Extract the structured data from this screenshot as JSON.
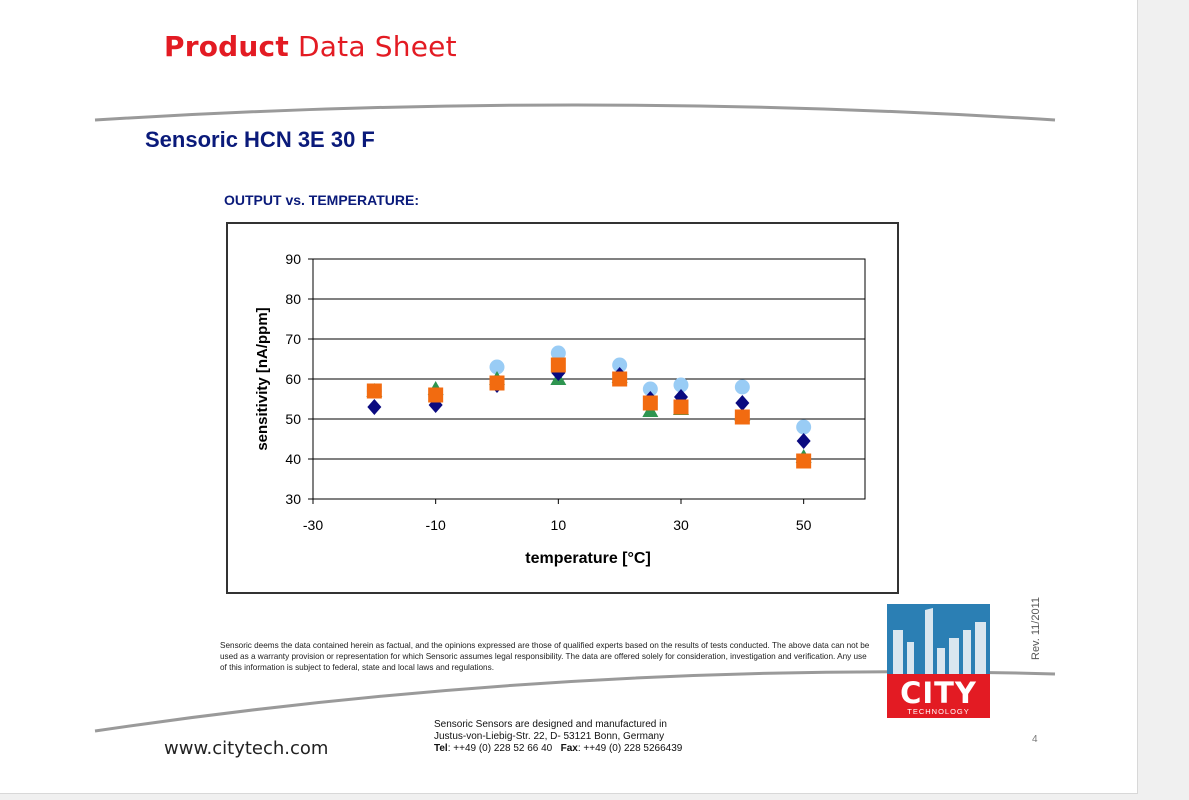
{
  "header": {
    "title_bold": "Product",
    "title_light": "Data Sheet"
  },
  "product_name": "Sensoric HCN 3E 30 F",
  "chart_heading": "OUTPUT vs. TEMPERATURE:",
  "chart_data": {
    "type": "scatter",
    "xlabel": "temperature [°C]",
    "ylabel": "sensitivity [nA/ppm]",
    "xlim": [
      -30,
      60
    ],
    "ylim": [
      30,
      90
    ],
    "x_ticks": [
      -30,
      -10,
      10,
      30,
      50
    ],
    "y_ticks": [
      30,
      40,
      50,
      60,
      70,
      80,
      90
    ],
    "grid": "horizontal",
    "series": [
      {
        "marker": "circle",
        "color": "#99ccf5",
        "points": [
          [
            -20,
            57
          ],
          [
            -10,
            56
          ],
          [
            0,
            63
          ],
          [
            10,
            66.5
          ],
          [
            20,
            63.5
          ],
          [
            25,
            57.5
          ],
          [
            30,
            58.5
          ],
          [
            40,
            58
          ],
          [
            50,
            48
          ]
        ]
      },
      {
        "marker": "triangle",
        "color": "#2e9550",
        "points": [
          [
            -20,
            57
          ],
          [
            -10,
            57.5
          ],
          [
            0,
            60
          ],
          [
            10,
            60
          ],
          [
            20,
            60.5
          ],
          [
            25,
            52
          ],
          [
            30,
            52.5
          ],
          [
            40,
            51
          ],
          [
            50,
            40.5
          ]
        ]
      },
      {
        "marker": "diamond",
        "color": "#0a0a80",
        "points": [
          [
            -20,
            53
          ],
          [
            -10,
            53.5
          ],
          [
            0,
            58.5
          ],
          [
            10,
            61.5
          ],
          [
            20,
            61
          ],
          [
            25,
            55
          ],
          [
            30,
            55.5
          ],
          [
            40,
            54
          ],
          [
            50,
            44.5
          ]
        ]
      },
      {
        "marker": "square",
        "color": "#f26b10",
        "points": [
          [
            -20,
            57
          ],
          [
            -10,
            56
          ],
          [
            0,
            59
          ],
          [
            10,
            63.5
          ],
          [
            20,
            60
          ],
          [
            25,
            54
          ],
          [
            30,
            53
          ],
          [
            40,
            50.5
          ],
          [
            50,
            39.5
          ]
        ]
      }
    ]
  },
  "disclaimer": "Sensoric deems the data contained herein as factual, and the opinions expressed are those of qualified experts based on the results of tests conducted. The above data can not be used as a warranty provision or representation for which Sensoric assumes legal responsibility. The data are offered solely for consideration, investigation and verification. Any use of this information is subject to federal, state and local laws and regulations.",
  "logo": {
    "name": "CITY",
    "sub": "TECHNOLOGY",
    "colors": {
      "top": "#2b7fb4",
      "bottom": "#e31b23"
    }
  },
  "revision": "Rev.  11/2011",
  "footer": {
    "website": "www.citytech.com",
    "line1": "Sensoric Sensors are designed and manufactured in",
    "line2": "Justus-von-Liebig-Str. 22, D- 53121 Bonn, Germany",
    "tel_label": "Tel",
    "tel_value": ": ++49 (0) 228 52 66 40",
    "fax_label": "Fax",
    "fax_value": ": ++49 (0) 228 5266439"
  },
  "page_number": "4"
}
